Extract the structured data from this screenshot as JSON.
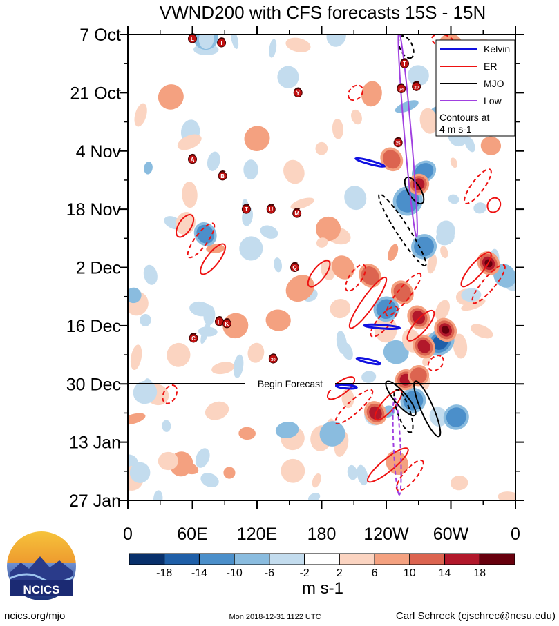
{
  "chart_data": {
    "type": "heatmap",
    "title": "VWND200 with CFS forecasts  15S - 15N",
    "x_axis": {
      "label_positions_deg": [
        0,
        60,
        120,
        180,
        240,
        300,
        360
      ],
      "tick_labels": [
        "0",
        "60E",
        "120E",
        "180",
        "120W",
        "60W",
        "0"
      ],
      "range_deg": [
        0,
        360
      ]
    },
    "y_axis": {
      "range_days": [
        0,
        112
      ],
      "ticks": [
        {
          "label": "7 Oct",
          "day": 0
        },
        {
          "label": "21 Oct",
          "day": 14
        },
        {
          "label": "4 Nov",
          "day": 28
        },
        {
          "label": "18 Nov",
          "day": 42
        },
        {
          "label": "2 Dec",
          "day": 56
        },
        {
          "label": "16 Dec",
          "day": 70
        },
        {
          "label": "30 Dec",
          "day": 84
        },
        {
          "label": "13 Jan",
          "day": 98
        },
        {
          "label": "27 Jan",
          "day": 112
        }
      ]
    },
    "forecast_line": {
      "label": "Begin Forecast",
      "day": 84
    },
    "legend": {
      "position": "top-right",
      "entries": [
        {
          "name": "Kelvin",
          "color": "#1010e0"
        },
        {
          "name": "ER",
          "color": "#ee1111"
        },
        {
          "name": "MJO",
          "color": "#000000"
        },
        {
          "name": "Low",
          "color": "#a040e0"
        }
      ],
      "note_line1": "Contours at",
      "note_line2": "4 m s-1"
    },
    "colorbar": {
      "units": "m s-1",
      "levels": [
        "-18",
        "-14",
        "-10",
        "-6",
        "-2",
        "2",
        "6",
        "10",
        "14",
        "18"
      ],
      "colors": [
        "#08306b",
        "#1f5fa8",
        "#4b8fca",
        "#8abcdf",
        "#c3dcee",
        "#ffffff",
        "#fbd4c1",
        "#f4a180",
        "#dc6450",
        "#b2182b",
        "#67000d"
      ]
    },
    "heatmap_features": [
      {
        "sign": "neg",
        "lon": 275,
        "day": 33,
        "rx": 12,
        "rd": 2.5,
        "v": -12
      },
      {
        "sign": "neg",
        "lon": 260,
        "day": 40,
        "rx": 14,
        "rd": 3.5,
        "v": -12
      },
      {
        "sign": "neg",
        "lon": 275,
        "day": 51,
        "rx": 12,
        "rd": 3,
        "v": -10
      },
      {
        "sign": "neg",
        "lon": 240,
        "day": 66,
        "rx": 12,
        "rd": 3,
        "v": -12
      },
      {
        "sign": "neg",
        "lon": 290,
        "day": 74,
        "rx": 14,
        "rd": 3,
        "v": -14
      },
      {
        "sign": "neg",
        "lon": 265,
        "day": 88,
        "rx": 12,
        "rd": 3,
        "v": -12
      },
      {
        "sign": "neg",
        "lon": 305,
        "day": 92,
        "rx": 12,
        "rd": 3,
        "v": -10
      },
      {
        "sign": "neg",
        "lon": 72,
        "day": 48,
        "rx": 10,
        "rd": 3,
        "v": -10
      },
      {
        "sign": "neg",
        "lon": 350,
        "day": 58,
        "rx": 10,
        "rd": 3,
        "v": -8
      },
      {
        "sign": "neg",
        "lon": 190,
        "day": 96,
        "rx": 12,
        "rd": 3,
        "v": -8
      },
      {
        "sign": "pos",
        "lon": 258,
        "day": 83,
        "rx": 10,
        "rd": 2.5,
        "v": 14
      },
      {
        "sign": "pos",
        "lon": 270,
        "day": 82,
        "rx": 10,
        "rd": 2.5,
        "v": 12
      },
      {
        "sign": "pos",
        "lon": 335,
        "day": 55,
        "rx": 10,
        "rd": 3,
        "v": 18
      },
      {
        "sign": "pos",
        "lon": 270,
        "day": 68,
        "rx": 10,
        "rd": 3,
        "v": 14
      },
      {
        "sign": "pos",
        "lon": 295,
        "day": 71,
        "rx": 10,
        "rd": 3,
        "v": 18
      },
      {
        "sign": "pos",
        "lon": 255,
        "day": 62,
        "rx": 10,
        "rd": 3,
        "v": 10
      },
      {
        "sign": "pos",
        "lon": 225,
        "day": 58,
        "rx": 10,
        "rd": 3,
        "v": 10
      },
      {
        "sign": "pos",
        "lon": 275,
        "day": 75,
        "rx": 10,
        "rd": 3,
        "v": 14
      },
      {
        "sign": "pos",
        "lon": 230,
        "day": 91,
        "rx": 10,
        "rd": 3,
        "v": 14
      },
      {
        "sign": "pos",
        "lon": 270,
        "day": 36,
        "rx": 10,
        "rd": 2.5,
        "v": 14
      },
      {
        "sign": "pos",
        "lon": 245,
        "day": 30,
        "rx": 10,
        "rd": 3,
        "v": 10
      },
      {
        "sign": "pos",
        "lon": 160,
        "day": 61,
        "rx": 14,
        "rd": 3,
        "v": 8
      },
      {
        "sign": "pos",
        "lon": 200,
        "day": 56,
        "rx": 10,
        "rd": 3,
        "v": 8
      },
      {
        "sign": "pos",
        "lon": 250,
        "day": 103,
        "rx": 10,
        "rd": 3,
        "v": 8
      },
      {
        "sign": "pos",
        "lon": 120,
        "day": 25,
        "rx": 12,
        "rd": 3,
        "v": 6
      },
      {
        "sign": "pos",
        "lon": 40,
        "day": 15,
        "rx": 12,
        "rd": 3,
        "v": 6
      },
      {
        "sign": "pos",
        "lon": 330,
        "day": 8,
        "rx": 12,
        "rd": 3,
        "v": 6
      },
      {
        "sign": "pos",
        "lon": 100,
        "day": 70,
        "rx": 12,
        "rd": 3,
        "v": 6
      }
    ],
    "contours": [
      {
        "type": "ER",
        "lon": 285,
        "day": 1,
        "lon2": 300,
        "day2": 2,
        "dashed": true
      },
      {
        "type": "ER",
        "lon": 215,
        "day": 13,
        "lon2": 208,
        "day2": 15,
        "dashed": true
      },
      {
        "type": "ER",
        "lon": 48,
        "day": 48,
        "lon2": 58,
        "day2": 44,
        "dashed": false
      },
      {
        "type": "ER",
        "lon": 58,
        "day": 53,
        "lon2": 78,
        "day2": 46,
        "dashed": true
      },
      {
        "type": "ER",
        "lon": 70,
        "day": 57,
        "lon2": 88,
        "day2": 51,
        "dashed": false
      },
      {
        "type": "ER",
        "lon": 170,
        "day": 60,
        "lon2": 185,
        "day2": 55,
        "dashed": false
      },
      {
        "type": "ER",
        "lon": 205,
        "day": 61,
        "lon2": 218,
        "day2": 56,
        "dashed": true
      },
      {
        "type": "ER",
        "lon": 208,
        "day": 70,
        "lon2": 238,
        "day2": 59,
        "dashed": false
      },
      {
        "type": "ER",
        "lon": 228,
        "day": 72,
        "lon2": 248,
        "day2": 66,
        "dashed": true
      },
      {
        "type": "ER",
        "lon": 262,
        "day": 73,
        "lon2": 282,
        "day2": 67,
        "dashed": false
      },
      {
        "type": "ER",
        "lon": 242,
        "day": 67,
        "lon2": 270,
        "day2": 58,
        "dashed": true
      },
      {
        "type": "ER",
        "lon": 312,
        "day": 60,
        "lon2": 335,
        "day2": 53,
        "dashed": false
      },
      {
        "type": "ER",
        "lon": 322,
        "day": 64,
        "lon2": 348,
        "day2": 56,
        "dashed": true
      },
      {
        "type": "ER",
        "lon": 315,
        "day": 40,
        "lon2": 335,
        "day2": 33,
        "dashed": true
      },
      {
        "type": "ER",
        "lon": 338,
        "day": 42,
        "lon2": 342,
        "day2": 40,
        "dashed": false
      },
      {
        "type": "ER",
        "lon": 188,
        "day": 87,
        "lon2": 208,
        "day2": 83,
        "dashed": false
      },
      {
        "type": "ER",
        "lon": 195,
        "day": 93,
        "lon2": 225,
        "day2": 86,
        "dashed": true
      },
      {
        "type": "ER",
        "lon": 232,
        "day": 92,
        "lon2": 252,
        "day2": 86,
        "dashed": false
      },
      {
        "type": "ER",
        "lon": 225,
        "day": 107,
        "lon2": 258,
        "day2": 100,
        "dashed": false
      },
      {
        "type": "ER",
        "lon": 252,
        "day": 109,
        "lon2": 272,
        "day2": 103,
        "dashed": true
      },
      {
        "type": "ER",
        "lon": 36,
        "day": 88,
        "lon2": 42,
        "day2": 85,
        "dashed": true
      },
      {
        "type": "ER",
        "lon": 282,
        "day": 80,
        "lon2": 290,
        "day2": 78,
        "dashed": true
      },
      {
        "type": "Kelvin",
        "lon": 214,
        "day": 30,
        "lon2": 236,
        "day2": 31.5,
        "dashed": false
      },
      {
        "type": "Kelvin",
        "lon": 222,
        "day": 70,
        "lon2": 250,
        "day2": 70.5,
        "dashed": false
      },
      {
        "type": "Kelvin",
        "lon": 215,
        "day": 78,
        "lon2": 232,
        "day2": 79,
        "dashed": false
      },
      {
        "type": "Kelvin",
        "lon": 196,
        "day": 84.5,
        "lon2": 210,
        "day2": 84.8,
        "dashed": false
      },
      {
        "type": "MJO",
        "lon": 255,
        "day": 1,
        "lon2": 262,
        "day2": 5,
        "dashed": true
      },
      {
        "type": "MJO",
        "lon": 260,
        "day": 35,
        "lon2": 272,
        "day2": 40,
        "dashed": false
      },
      {
        "type": "MJO",
        "lon": 235,
        "day": 39,
        "lon2": 275,
        "day2": 55,
        "dashed": true
      },
      {
        "type": "MJO",
        "lon": 242,
        "day": 84,
        "lon2": 265,
        "day2": 91,
        "dashed": false
      },
      {
        "type": "MJO",
        "lon": 250,
        "day": 86,
        "lon2": 262,
        "day2": 95,
        "dashed": true
      },
      {
        "type": "MJO",
        "lon": 268,
        "day": 84,
        "lon2": 288,
        "day2": 96,
        "dashed": false
      },
      {
        "type": "Low",
        "lon": 252,
        "day": 0,
        "lon2": 268,
        "day2": 48,
        "dashed": false
      },
      {
        "type": "Low",
        "lon": 248,
        "day": 88,
        "lon2": 252,
        "day2": 110,
        "dashed": true
      }
    ],
    "storm_markers": [
      {
        "label": "L",
        "lon": 60,
        "day": 1
      },
      {
        "label": "T",
        "lon": 87,
        "day": 2
      },
      {
        "label": "Y",
        "lon": 158,
        "day": 14
      },
      {
        "label": "A",
        "lon": 60,
        "day": 30
      },
      {
        "label": "B",
        "lon": 88,
        "day": 34
      },
      {
        "label": "T",
        "lon": 110,
        "day": 42
      },
      {
        "label": "U",
        "lon": 133,
        "day": 42
      },
      {
        "label": "M",
        "lon": 157,
        "day": 43
      },
      {
        "label": "Q",
        "lon": 155,
        "day": 56
      },
      {
        "label": "F",
        "lon": 85,
        "day": 69
      },
      {
        "label": "K",
        "lon": 92,
        "day": 69.5
      },
      {
        "label": "C",
        "lon": 61,
        "day": 73
      },
      {
        "label": "30",
        "lon": 135,
        "day": 78
      },
      {
        "label": "T",
        "lon": 257,
        "day": 7
      },
      {
        "label": "34",
        "lon": 254,
        "day": 13
      },
      {
        "label": "20",
        "lon": 268,
        "day": 12.5
      },
      {
        "label": "25",
        "lon": 251,
        "day": 26
      }
    ]
  },
  "footer": {
    "logo_text": "NCICS",
    "left": "ncics.org/mjo",
    "center": "Mon 2018-12-31 1122 UTC",
    "right": "Carl Schreck (cjschrec@ncsu.edu)"
  }
}
